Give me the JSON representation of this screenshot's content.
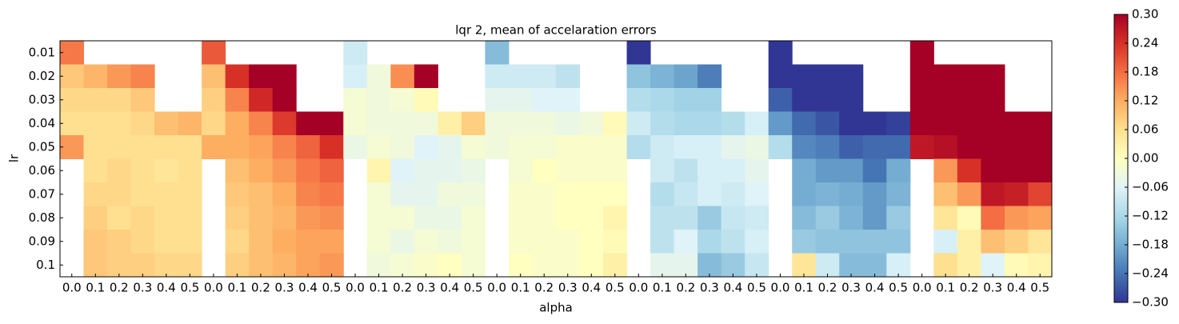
{
  "chart_data": {
    "type": "heatmap",
    "title": "lqr 2, mean of accelaration errors",
    "x_label": "alpha",
    "y_label": "lr",
    "categories": [
      "0.0",
      "0.1",
      "0.2",
      "0.3",
      "0.4",
      "0.5",
      "0.0",
      "0.1",
      "0.2",
      "0.3",
      "0.4",
      "0.5",
      "0.0",
      "0.1",
      "0.2",
      "0.3",
      "0.4",
      "0.5",
      "0.0",
      "0.1",
      "0.2",
      "0.3",
      "0.4",
      "0.5",
      "0.0",
      "0.1",
      "0.2",
      "0.3",
      "0.4",
      "0.5",
      "0.0",
      "0.1",
      "0.2",
      "0.3",
      "0.4",
      "0.5",
      "0.0",
      "0.1",
      "0.2",
      "0.3",
      "0.4",
      "0.5"
    ],
    "rows": [
      "0.01",
      "0.02",
      "0.03",
      "0.04",
      "0.05",
      "0.06",
      "0.07",
      "0.08",
      "0.09",
      "0.1"
    ],
    "values": [
      [
        0.17,
        null,
        null,
        null,
        null,
        null,
        0.2,
        null,
        null,
        null,
        null,
        null,
        -0.08,
        null,
        null,
        null,
        null,
        null,
        -0.16,
        null,
        null,
        null,
        null,
        null,
        -0.3,
        null,
        null,
        null,
        null,
        null,
        -0.3,
        null,
        null,
        null,
        null,
        null,
        0.3,
        null,
        null,
        null,
        null,
        null
      ],
      [
        0.09,
        0.11,
        0.14,
        0.16,
        null,
        null,
        0.1,
        0.24,
        0.3,
        0.3,
        null,
        null,
        -0.07,
        -0.03,
        0.15,
        0.3,
        null,
        null,
        -0.08,
        -0.08,
        -0.08,
        -0.1,
        null,
        null,
        -0.15,
        -0.17,
        -0.19,
        -0.23,
        null,
        null,
        -0.3,
        -0.3,
        -0.3,
        -0.3,
        null,
        null,
        0.3,
        0.3,
        0.3,
        0.3,
        null,
        null
      ],
      [
        0.07,
        0.07,
        0.07,
        0.09,
        null,
        null,
        0.08,
        0.16,
        0.25,
        0.3,
        null,
        null,
        -0.02,
        -0.03,
        -0.02,
        0.01,
        null,
        null,
        -0.05,
        -0.05,
        -0.06,
        -0.06,
        null,
        null,
        -0.11,
        -0.12,
        -0.13,
        -0.13,
        null,
        null,
        -0.26,
        -0.3,
        -0.3,
        -0.3,
        null,
        null,
        0.3,
        0.3,
        0.3,
        0.3,
        null,
        null
      ],
      [
        0.06,
        0.06,
        0.06,
        0.07,
        0.1,
        0.11,
        0.07,
        0.12,
        0.16,
        0.23,
        0.3,
        0.3,
        -0.02,
        -0.03,
        -0.03,
        -0.03,
        0.03,
        0.08,
        -0.03,
        -0.03,
        -0.03,
        -0.04,
        -0.03,
        0.01,
        -0.08,
        -0.11,
        -0.12,
        -0.12,
        -0.11,
        -0.07,
        -0.2,
        -0.25,
        -0.27,
        -0.3,
        -0.3,
        -0.29,
        0.3,
        0.3,
        0.3,
        0.3,
        0.3,
        0.3
      ],
      [
        0.14,
        0.06,
        0.06,
        0.06,
        0.06,
        0.06,
        0.12,
        0.12,
        0.13,
        0.16,
        0.19,
        0.24,
        -0.04,
        -0.02,
        -0.03,
        -0.06,
        -0.05,
        -0.02,
        -0.03,
        -0.02,
        -0.02,
        -0.01,
        -0.01,
        -0.01,
        -0.11,
        -0.08,
        -0.07,
        -0.07,
        -0.05,
        -0.04,
        -0.11,
        -0.22,
        -0.23,
        -0.26,
        -0.25,
        -0.25,
        0.27,
        0.28,
        0.3,
        0.3,
        0.3,
        0.3
      ],
      [
        null,
        0.06,
        0.07,
        0.06,
        0.05,
        0.06,
        null,
        0.1,
        0.12,
        0.14,
        0.17,
        0.19,
        null,
        0.02,
        -0.06,
        -0.05,
        -0.05,
        -0.04,
        null,
        -0.02,
        0.0,
        -0.01,
        -0.01,
        -0.01,
        null,
        -0.08,
        -0.1,
        -0.07,
        -0.07,
        -0.05,
        null,
        -0.18,
        -0.2,
        -0.2,
        -0.24,
        -0.18,
        null,
        0.14,
        0.24,
        0.3,
        0.3,
        0.3
      ],
      [
        null,
        0.07,
        0.07,
        0.06,
        0.06,
        0.06,
        null,
        0.09,
        0.1,
        0.12,
        0.16,
        0.17,
        null,
        -0.02,
        -0.05,
        -0.05,
        -0.03,
        -0.03,
        null,
        -0.01,
        -0.01,
        0.0,
        0.0,
        0.0,
        null,
        -0.11,
        -0.09,
        -0.07,
        -0.08,
        -0.06,
        null,
        -0.18,
        -0.17,
        -0.18,
        -0.2,
        -0.17,
        null,
        0.1,
        0.14,
        0.27,
        0.26,
        0.22
      ],
      [
        null,
        0.08,
        0.06,
        0.07,
        0.06,
        0.06,
        null,
        0.08,
        0.1,
        0.11,
        0.14,
        0.15,
        null,
        -0.02,
        -0.02,
        -0.04,
        -0.04,
        -0.02,
        null,
        -0.01,
        -0.01,
        0.0,
        0.0,
        0.02,
        null,
        -0.1,
        -0.1,
        -0.14,
        -0.09,
        -0.08,
        null,
        -0.16,
        -0.14,
        -0.17,
        -0.2,
        -0.14,
        null,
        0.05,
        0.01,
        0.18,
        0.14,
        0.13
      ],
      [
        null,
        0.09,
        0.08,
        0.07,
        0.06,
        0.06,
        null,
        0.07,
        0.1,
        0.12,
        0.13,
        0.13,
        null,
        -0.02,
        -0.04,
        -0.02,
        -0.03,
        -0.02,
        null,
        -0.01,
        -0.01,
        -0.01,
        0.0,
        0.01,
        null,
        -0.1,
        -0.06,
        -0.12,
        -0.1,
        -0.07,
        null,
        -0.14,
        -0.15,
        -0.15,
        -0.15,
        -0.15,
        null,
        -0.07,
        0.03,
        0.1,
        0.08,
        0.05
      ],
      [
        null,
        0.09,
        0.08,
        0.08,
        0.07,
        0.07,
        null,
        0.08,
        0.1,
        0.11,
        0.13,
        0.14,
        null,
        -0.03,
        -0.02,
        -0.01,
        0.0,
        -0.02,
        null,
        0.0,
        -0.01,
        -0.01,
        0.0,
        0.03,
        null,
        -0.05,
        -0.05,
        -0.16,
        -0.14,
        -0.09,
        null,
        0.05,
        -0.08,
        -0.16,
        -0.16,
        -0.07,
        null,
        0.06,
        0.03,
        -0.06,
        0.01,
        0.02
      ]
    ],
    "zlim": [
      -0.3,
      0.3
    ],
    "colorbar_ticks": [
      {
        "value": 0.3,
        "label": "0.30"
      },
      0.24,
      0.18,
      0.12,
      0.06,
      {
        "value": 0,
        "label": "0.00"
      },
      {
        "value": -0.06,
        "label": "−0.06"
      },
      {
        "value": -0.12,
        "label": "−0.12"
      },
      {
        "value": -0.18,
        "label": "−0.18"
      },
      {
        "value": -0.24,
        "label": "−0.24"
      },
      {
        "value": -0.3,
        "label": "−0.30"
      }
    ],
    "colormap": [
      "#313695",
      "#4575b4",
      "#74add1",
      "#abd9e9",
      "#e0f3f8",
      "#ffffbf",
      "#fee090",
      "#fdae61",
      "#f46d43",
      "#d73027",
      "#a50026"
    ]
  }
}
